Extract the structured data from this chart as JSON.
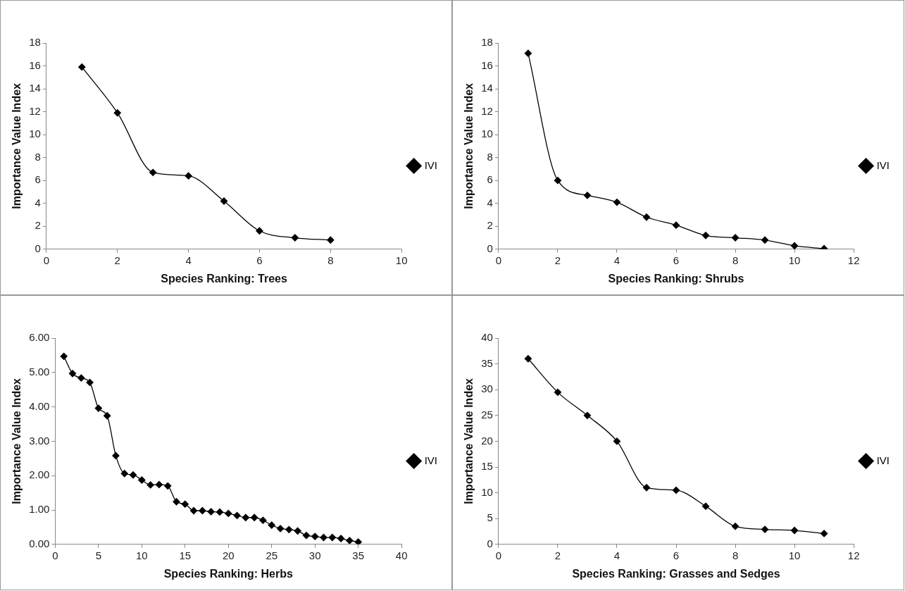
{
  "chart_data": [
    {
      "type": "line",
      "xlabel": "Species Ranking: Trees",
      "ylabel": "Importance Value Index",
      "x": [
        1,
        2,
        3,
        4,
        5,
        6,
        7,
        8
      ],
      "series": [
        {
          "name": "IVI",
          "color": "#000000",
          "values": [
            15.9,
            11.9,
            6.7,
            6.4,
            4.2,
            1.6,
            1.0,
            0.8
          ]
        }
      ],
      "xlim": [
        0,
        10
      ],
      "xticks": [
        0,
        2,
        4,
        6,
        8,
        10
      ],
      "ylim": [
        0,
        18
      ],
      "yticks": [
        0,
        2,
        4,
        6,
        8,
        10,
        12,
        14,
        16,
        18
      ],
      "grid": false,
      "legend": "right",
      "marker": "diamond",
      "line_style": "solid"
    },
    {
      "type": "line",
      "xlabel": "Species Ranking: Shrubs",
      "ylabel": "Importance Value Index",
      "x": [
        1,
        2,
        3,
        4,
        5,
        6,
        7,
        8,
        9,
        10,
        11
      ],
      "series": [
        {
          "name": "IVI",
          "color": "#000000",
          "values": [
            17.1,
            6.0,
            4.7,
            4.1,
            2.8,
            2.1,
            1.2,
            1.0,
            0.8,
            0.3,
            0.05
          ]
        }
      ],
      "xlim": [
        0,
        12
      ],
      "xticks": [
        0,
        2,
        4,
        6,
        8,
        10,
        12
      ],
      "ylim": [
        0,
        18
      ],
      "yticks": [
        0,
        2,
        4,
        6,
        8,
        10,
        12,
        14,
        16,
        18
      ],
      "grid": false,
      "legend": "right",
      "marker": "diamond",
      "line_style": "solid"
    },
    {
      "type": "line",
      "xlabel": "Species Ranking: Herbs",
      "ylabel": "Importance Value Index",
      "x": [
        1,
        2,
        3,
        4,
        5,
        6,
        7,
        8,
        9,
        10,
        11,
        12,
        13,
        14,
        15,
        16,
        17,
        18,
        19,
        20,
        21,
        22,
        23,
        24,
        25,
        26,
        27,
        28,
        29,
        30,
        31,
        32,
        33,
        34,
        35
      ],
      "series": [
        {
          "name": "IVI",
          "color": "#000000",
          "values": [
            5.47,
            4.97,
            4.84,
            4.71,
            3.96,
            3.74,
            2.58,
            2.06,
            2.02,
            1.87,
            1.73,
            1.74,
            1.7,
            1.24,
            1.17,
            0.98,
            0.98,
            0.95,
            0.94,
            0.9,
            0.84,
            0.78,
            0.78,
            0.7,
            0.56,
            0.46,
            0.43,
            0.39,
            0.26,
            0.23,
            0.2,
            0.2,
            0.17,
            0.11,
            0.07
          ]
        }
      ],
      "xlim": [
        0,
        40
      ],
      "xticks": [
        0,
        5,
        10,
        15,
        20,
        25,
        30,
        35,
        40
      ],
      "ylim": [
        0,
        6
      ],
      "yticks": [
        {
          "value": 0,
          "label": "0.00"
        },
        {
          "value": 1,
          "label": "1.00"
        },
        {
          "value": 2,
          "label": "2.00"
        },
        {
          "value": 3,
          "label": "3.00"
        },
        {
          "value": 4,
          "label": "4.00"
        },
        {
          "value": 5,
          "label": "5.00"
        },
        {
          "value": 6,
          "label": "6.00"
        }
      ],
      "grid": false,
      "legend": "right",
      "marker": "diamond",
      "line_style": "solid"
    },
    {
      "type": "line",
      "xlabel": "Species Ranking: Grasses and Sedges",
      "ylabel": "Importance Value Index",
      "x": [
        1,
        2,
        3,
        4,
        5,
        6,
        7,
        8,
        9,
        10,
        11
      ],
      "series": [
        {
          "name": "IVI",
          "color": "#000000",
          "values": [
            36,
            29.5,
            25,
            20,
            11,
            10.5,
            7.4,
            3.5,
            2.9,
            2.7,
            2.1
          ]
        }
      ],
      "xlim": [
        0,
        12
      ],
      "xticks": [
        0,
        2,
        4,
        6,
        8,
        10,
        12
      ],
      "ylim": [
        0,
        40
      ],
      "yticks": [
        0,
        5,
        10,
        15,
        20,
        25,
        30,
        35,
        40
      ],
      "grid": false,
      "legend": "right",
      "marker": "diamond",
      "line_style": "solid"
    }
  ]
}
